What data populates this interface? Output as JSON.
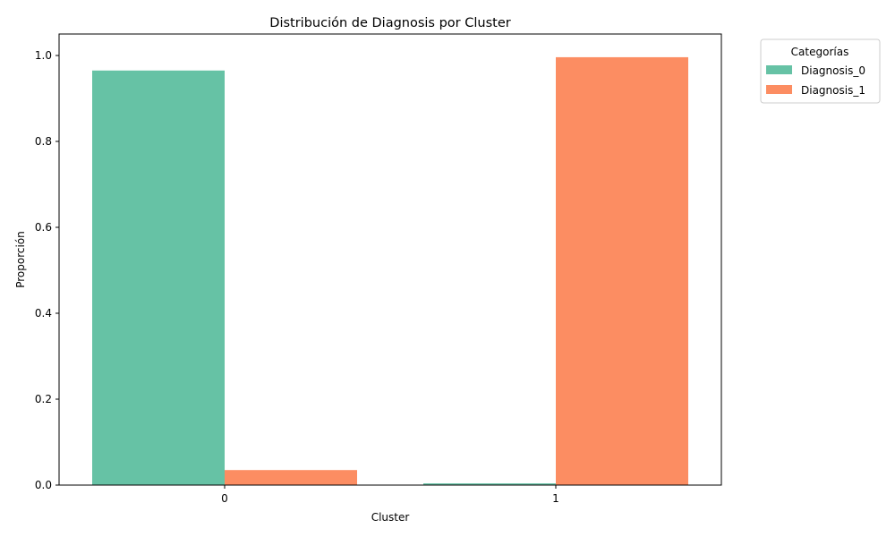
{
  "chart_data": {
    "type": "bar",
    "title": "Distribución de Diagnosis por Cluster",
    "xlabel": "Cluster",
    "ylabel": "Proporción",
    "categories": [
      "0",
      "1"
    ],
    "series": [
      {
        "name": "Diagnosis_0",
        "values": [
          0.965,
          0.004
        ],
        "color": "#66c2a5"
      },
      {
        "name": "Diagnosis_1",
        "values": [
          0.035,
          0.996
        ],
        "color": "#fc8d62"
      }
    ],
    "ylim": [
      0,
      1.05
    ],
    "yticks": [
      "0.0",
      "0.2",
      "0.4",
      "0.6",
      "0.8",
      "1.0"
    ],
    "grid": false,
    "legend": {
      "title": "Categorías",
      "placement": "outside-top-right"
    }
  }
}
